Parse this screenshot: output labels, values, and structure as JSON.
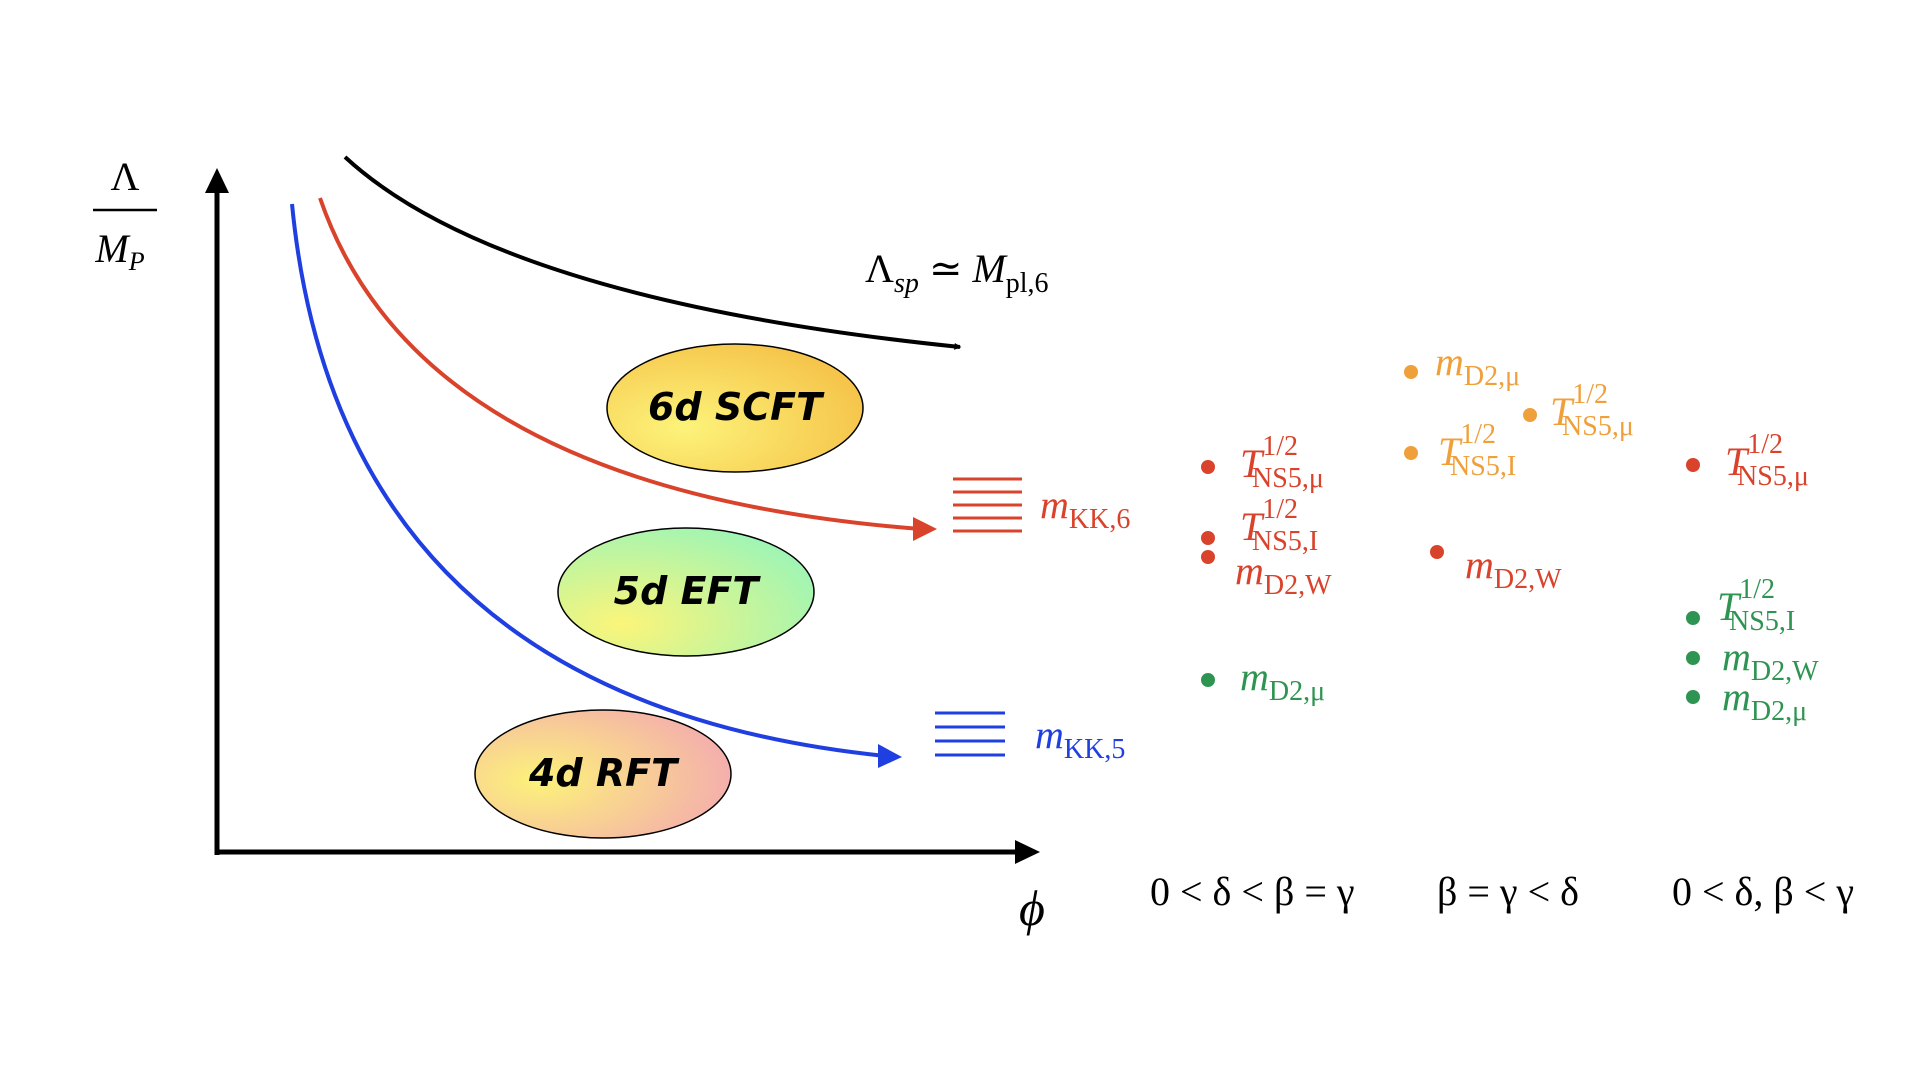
{
  "axes": {
    "y_label_top": "Λ",
    "y_label_bottom_base": "M",
    "y_label_bottom_sub": "P",
    "x_label": "ϕ"
  },
  "curves": {
    "species_scale": {
      "base": "Λ",
      "sub": "sp",
      "relation": "≃",
      "rhs_base": "M",
      "rhs_sub": "pl,6",
      "color": "#000000"
    },
    "kk6": {
      "base": "m",
      "sub": "KK,6",
      "color": "#d9432b"
    },
    "kk5": {
      "base": "m",
      "sub": "KK,5",
      "color": "#1f3fe0"
    }
  },
  "regions": [
    {
      "label": "6d SCFT",
      "colors": [
        "#fdf37a",
        "#f5c046"
      ]
    },
    {
      "label": "5d EFT",
      "colors": [
        "#fbf57a",
        "#9ff5b5"
      ]
    },
    {
      "label": "4d RFT",
      "colors": [
        "#fcf27a",
        "#f3a6b3"
      ]
    }
  ],
  "colors": {
    "red": "#d9432b",
    "orange": "#f0a03a",
    "green": "#2e9451",
    "blue": "#1f3fe0"
  },
  "columns": [
    {
      "condition": "0 < δ < β = γ",
      "entries": [
        {
          "base": "T",
          "sup": "1/2",
          "sub": "NS5,μ",
          "color": "red"
        },
        {
          "base": "T",
          "sup": "1/2",
          "sub": "NS5,I",
          "color": "red"
        },
        {
          "base": "m",
          "sub": "D2,W",
          "color": "red"
        },
        {
          "base": "m",
          "sub": "D2,μ",
          "color": "green"
        }
      ]
    },
    {
      "condition": "β = γ < δ",
      "entries": [
        {
          "base": "m",
          "sub": "D2,μ",
          "color": "orange"
        },
        {
          "base": "T",
          "sup": "1/2",
          "sub": "NS5,μ",
          "color": "orange"
        },
        {
          "base": "T",
          "sup": "1/2",
          "sub": "NS5,I",
          "color": "orange"
        },
        {
          "base": "m",
          "sub": "D2,W",
          "color": "red"
        }
      ]
    },
    {
      "condition": "0 < δ, β < γ",
      "entries": [
        {
          "base": "T",
          "sup": "1/2",
          "sub": "NS5,μ",
          "color": "red"
        },
        {
          "base": "T",
          "sup": "1/2",
          "sub": "NS5,I",
          "color": "green"
        },
        {
          "base": "m",
          "sub": "D2,W",
          "color": "green"
        },
        {
          "base": "m",
          "sub": "D2,μ",
          "color": "green"
        }
      ]
    }
  ]
}
